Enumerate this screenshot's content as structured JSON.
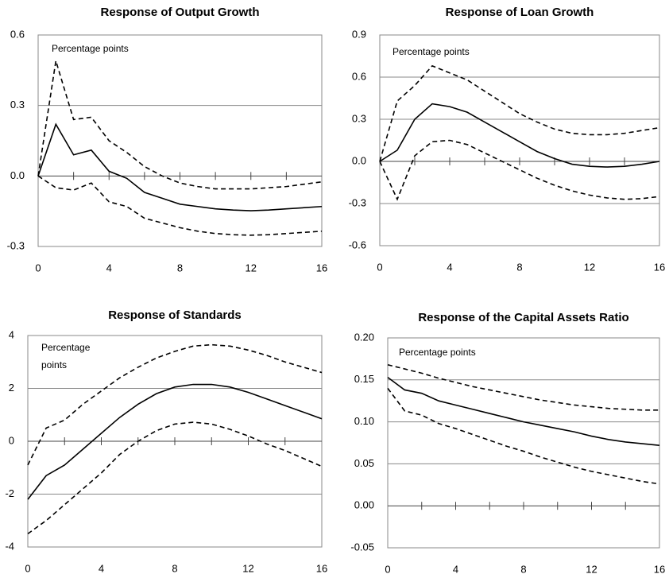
{
  "chart_data": [
    {
      "type": "line",
      "title": "Response of Output Growth",
      "annotation": "Percentage points",
      "x": [
        0,
        1,
        2,
        3,
        4,
        5,
        6,
        7,
        8,
        9,
        10,
        11,
        12,
        13,
        14,
        15,
        16
      ],
      "xlim": [
        0,
        16
      ],
      "xticks": [
        0,
        4,
        8,
        12,
        16
      ],
      "minor_xticks": [
        2,
        4,
        6,
        8,
        10,
        12,
        14
      ],
      "ylim": [
        -0.3,
        0.6
      ],
      "yticks": [
        {
          "value": -0.3,
          "label": "-0.3"
        },
        {
          "value": 0,
          "label": "0.0"
        },
        0.3,
        0.6
      ],
      "grid": true,
      "series": [
        {
          "color": "#000000",
          "dash": false,
          "values": [
            0,
            0.22,
            0.09,
            0.11,
            0.02,
            -0.01,
            -0.07,
            -0.095,
            -0.12,
            -0.13,
            -0.14,
            -0.145,
            -0.148,
            -0.145,
            -0.14,
            -0.135,
            -0.13
          ]
        },
        {
          "color": "#000000",
          "dash": true,
          "values": [
            0,
            0.49,
            0.24,
            0.25,
            0.15,
            0.1,
            0.04,
            0,
            -0.03,
            -0.045,
            -0.055,
            -0.055,
            -0.055,
            -0.05,
            -0.045,
            -0.035,
            -0.025
          ]
        },
        {
          "color": "#000000",
          "dash": true,
          "values": [
            0,
            -0.05,
            -0.06,
            -0.03,
            -0.11,
            -0.13,
            -0.18,
            -0.2,
            -0.22,
            -0.235,
            -0.245,
            -0.25,
            -0.252,
            -0.25,
            -0.245,
            -0.24,
            -0.235
          ]
        }
      ]
    },
    {
      "type": "line",
      "title": "Response of Loan Growth",
      "annotation": "Percentage points",
      "x": [
        0,
        1,
        2,
        3,
        4,
        5,
        6,
        7,
        8,
        9,
        10,
        11,
        12,
        13,
        14,
        15,
        16
      ],
      "xlim": [
        0,
        16
      ],
      "xticks": [
        0,
        4,
        8,
        12,
        16
      ],
      "minor_xticks": [
        2,
        4,
        6,
        8,
        10,
        12,
        14
      ],
      "ylim": [
        -0.6,
        0.9
      ],
      "yticks": [
        -0.6,
        -0.3,
        {
          "value": 0,
          "label": "0.0"
        },
        0.3,
        0.6,
        0.9
      ],
      "grid": true,
      "series": [
        {
          "color": "#000000",
          "dash": false,
          "values": [
            0,
            0.08,
            0.3,
            0.41,
            0.39,
            0.35,
            0.28,
            0.21,
            0.14,
            0.07,
            0.02,
            -0.02,
            -0.035,
            -0.04,
            -0.035,
            -0.02,
            0
          ]
        },
        {
          "color": "#000000",
          "dash": true,
          "values": [
            0,
            0.43,
            0.54,
            0.68,
            0.63,
            0.58,
            0.5,
            0.42,
            0.34,
            0.28,
            0.23,
            0.2,
            0.19,
            0.19,
            0.2,
            0.22,
            0.24
          ]
        },
        {
          "color": "#000000",
          "dash": true,
          "values": [
            0,
            -0.27,
            0.04,
            0.14,
            0.15,
            0.12,
            0.06,
            0,
            -0.06,
            -0.12,
            -0.17,
            -0.21,
            -0.24,
            -0.26,
            -0.27,
            -0.265,
            -0.25
          ]
        }
      ]
    },
    {
      "type": "line",
      "title": "Response of Standards",
      "annotation": [
        "Percentage",
        "points"
      ],
      "x": [
        0,
        1,
        2,
        3,
        4,
        5,
        6,
        7,
        8,
        9,
        10,
        11,
        12,
        13,
        14,
        15,
        16
      ],
      "xlim": [
        0,
        16
      ],
      "xticks": [
        0,
        4,
        8,
        12,
        16
      ],
      "minor_xticks": [
        2,
        4,
        6,
        8,
        10,
        12,
        14
      ],
      "ylim": [
        -4,
        4
      ],
      "yticks": [
        -4,
        -2,
        0,
        2,
        4
      ],
      "grid": true,
      "series": [
        {
          "color": "#000000",
          "dash": false,
          "values": [
            -2.2,
            -1.3,
            -0.9,
            -0.3,
            0.3,
            0.9,
            1.4,
            1.8,
            2.05,
            2.15,
            2.15,
            2.05,
            1.85,
            1.6,
            1.35,
            1.1,
            0.85
          ]
        },
        {
          "color": "#000000",
          "dash": true,
          "values": [
            -0.9,
            0.5,
            0.8,
            1.4,
            1.9,
            2.4,
            2.8,
            3.15,
            3.4,
            3.6,
            3.65,
            3.6,
            3.45,
            3.25,
            3,
            2.8,
            2.6
          ]
        },
        {
          "color": "#000000",
          "dash": true,
          "values": [
            -3.5,
            -3,
            -2.4,
            -1.8,
            -1.2,
            -0.5,
            0,
            0.4,
            0.65,
            0.72,
            0.65,
            0.45,
            0.2,
            -0.1,
            -0.35,
            -0.65,
            -0.95
          ]
        }
      ]
    },
    {
      "type": "line",
      "title": "Response of the Capital Assets Ratio",
      "annotation": "Percentage points",
      "x": [
        0,
        1,
        2,
        3,
        4,
        5,
        6,
        7,
        8,
        9,
        10,
        11,
        12,
        13,
        14,
        15,
        16
      ],
      "xlim": [
        0,
        16
      ],
      "xticks": [
        0,
        4,
        8,
        12,
        16
      ],
      "minor_xticks": [
        2,
        4,
        6,
        8,
        10,
        12,
        14
      ],
      "ylim": [
        -0.05,
        0.2
      ],
      "yticks": [
        -0.05,
        {
          "value": 0,
          "label": "0.00"
        },
        0.05,
        {
          "value": 0.1,
          "label": "0.10"
        },
        0.15,
        {
          "value": 0.2,
          "label": "0.20"
        }
      ],
      "grid": true,
      "series": [
        {
          "color": "#000000",
          "dash": false,
          "values": [
            0.153,
            0.138,
            0.134,
            0.125,
            0.12,
            0.115,
            0.11,
            0.105,
            0.1,
            0.096,
            0.092,
            0.088,
            0.083,
            0.079,
            0.076,
            0.074,
            0.072
          ]
        },
        {
          "color": "#000000",
          "dash": true,
          "values": [
            0.168,
            0.163,
            0.158,
            0.152,
            0.147,
            0.142,
            0.138,
            0.134,
            0.13,
            0.126,
            0.123,
            0.12,
            0.118,
            0.116,
            0.115,
            0.114,
            0.114
          ]
        },
        {
          "color": "#000000",
          "dash": true,
          "values": [
            0.14,
            0.113,
            0.108,
            0.098,
            0.092,
            0.085,
            0.078,
            0.071,
            0.065,
            0.058,
            0.052,
            0.046,
            0.041,
            0.037,
            0.033,
            0.029,
            0.026
          ]
        }
      ]
    }
  ]
}
